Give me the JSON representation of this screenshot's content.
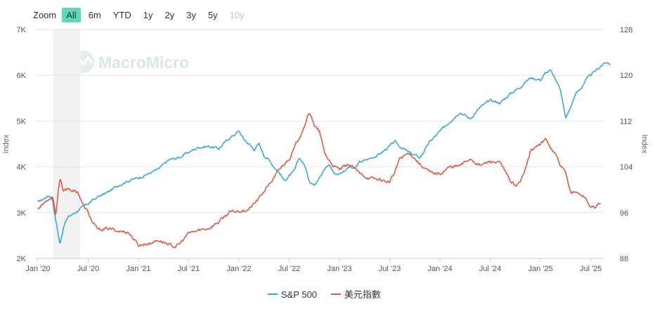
{
  "zoom": {
    "label": "Zoom",
    "buttons": [
      "All",
      "6m",
      "YTD",
      "1y",
      "2y",
      "3y",
      "5y",
      "10y"
    ],
    "active": "All",
    "disabled": [
      "10y"
    ]
  },
  "watermark": "MacroMicro",
  "colors": {
    "sp500": "#3ea8d4",
    "dxy": "#e05a44",
    "recession": "#f2f2f2",
    "grid": "#e6e6e6"
  },
  "chart_data": {
    "type": "line",
    "x_ticks": [
      "Jan '20",
      "Jul '20",
      "Jan '21",
      "Jul '21",
      "Jan '22",
      "Jul '22",
      "Jan '23",
      "Jul '23",
      "Jan '24",
      "Jul '24",
      "Jan '25",
      "Jul '25"
    ],
    "y_left": {
      "title": "Index",
      "ticks": [
        "2K",
        "3K",
        "4K",
        "5K",
        "6K",
        "7K"
      ],
      "range": [
        2000,
        7000
      ]
    },
    "y_right": {
      "title": "Index",
      "ticks": [
        "88",
        "96",
        "104",
        "112",
        "120",
        "128"
      ],
      "range": [
        88,
        128
      ]
    },
    "shaded_band": {
      "from": 2020.15,
      "to": 2020.42
    },
    "legend_position": "bottom-center",
    "grid": true,
    "series": [
      {
        "name": "S&P 500",
        "axis": "left",
        "x": [
          2020.0,
          2020.05,
          2020.1,
          2020.14,
          2020.18,
          2020.22,
          2020.26,
          2020.3,
          2020.4,
          2020.5,
          2020.6,
          2020.7,
          2020.8,
          2020.9,
          2021.0,
          2021.1,
          2021.2,
          2021.3,
          2021.4,
          2021.5,
          2021.6,
          2021.7,
          2021.8,
          2021.9,
          2022.0,
          2022.05,
          2022.1,
          2022.15,
          2022.2,
          2022.25,
          2022.3,
          2022.35,
          2022.4,
          2022.45,
          2022.5,
          2022.55,
          2022.6,
          2022.65,
          2022.7,
          2022.75,
          2022.8,
          2022.85,
          2022.9,
          2022.95,
          2023.0,
          2023.1,
          2023.15,
          2023.2,
          2023.3,
          2023.4,
          2023.5,
          2023.55,
          2023.6,
          2023.7,
          2023.8,
          2023.9,
          2024.0,
          2024.1,
          2024.2,
          2024.3,
          2024.4,
          2024.5,
          2024.6,
          2024.7,
          2024.8,
          2024.9,
          2025.0,
          2025.05,
          2025.1,
          2025.15,
          2025.2,
          2025.25,
          2025.3,
          2025.35,
          2025.4,
          2025.45,
          2025.5,
          2025.55,
          2025.6,
          2025.65,
          2025.7
        ],
        "y": [
          3230,
          3290,
          3370,
          3350,
          2800,
          2300,
          2750,
          2900,
          3050,
          3200,
          3350,
          3450,
          3600,
          3700,
          3760,
          3850,
          3950,
          4150,
          4200,
          4320,
          4430,
          4450,
          4400,
          4620,
          4780,
          4600,
          4500,
          4380,
          4500,
          4250,
          4150,
          4000,
          3880,
          3700,
          3800,
          3900,
          4200,
          4050,
          3700,
          3600,
          3800,
          3950,
          4050,
          3850,
          3850,
          4000,
          3950,
          4100,
          4180,
          4280,
          4450,
          4550,
          4450,
          4300,
          4200,
          4550,
          4770,
          5000,
          5200,
          5050,
          5300,
          5450,
          5400,
          5600,
          5750,
          5950,
          5900,
          6050,
          6100,
          5900,
          5700,
          5050,
          5300,
          5600,
          5700,
          5900,
          6000,
          6100,
          6200,
          6280,
          6250
        ]
      },
      {
        "name": "美元指數",
        "axis": "right",
        "x": [
          2020.0,
          2020.05,
          2020.1,
          2020.15,
          2020.18,
          2020.2,
          2020.22,
          2020.25,
          2020.3,
          2020.35,
          2020.4,
          2020.45,
          2020.5,
          2020.55,
          2020.6,
          2020.7,
          2020.8,
          2020.9,
          2021.0,
          2021.1,
          2021.2,
          2021.3,
          2021.35,
          2021.4,
          2021.5,
          2021.6,
          2021.7,
          2021.8,
          2021.9,
          2022.0,
          2022.1,
          2022.2,
          2022.3,
          2022.35,
          2022.4,
          2022.45,
          2022.5,
          2022.55,
          2022.6,
          2022.65,
          2022.7,
          2022.72,
          2022.75,
          2022.8,
          2022.85,
          2022.9,
          2022.95,
          2023.0,
          2023.1,
          2023.2,
          2023.3,
          2023.4,
          2023.5,
          2023.55,
          2023.6,
          2023.7,
          2023.8,
          2023.9,
          2024.0,
          2024.1,
          2024.2,
          2024.3,
          2024.4,
          2024.5,
          2024.6,
          2024.7,
          2024.75,
          2024.8,
          2024.85,
          2024.9,
          2025.0,
          2025.05,
          2025.1,
          2025.15,
          2025.2,
          2025.25,
          2025.3,
          2025.35,
          2025.4,
          2025.45,
          2025.5,
          2025.55,
          2025.6
        ],
        "y": [
          96.8,
          97.5,
          98.4,
          98.8,
          95.5,
          99.8,
          102.2,
          99.5,
          100.3,
          99.8,
          99.6,
          97.2,
          96.0,
          94.0,
          93.0,
          93.2,
          92.8,
          92.6,
          90.3,
          90.6,
          91.2,
          90.5,
          90.1,
          90.3,
          92.4,
          92.9,
          93.3,
          94.4,
          96.0,
          96.3,
          96.6,
          98.5,
          101.0,
          102.0,
          103.5,
          104.5,
          105.5,
          107.2,
          109.2,
          111.2,
          113.5,
          113.0,
          111.0,
          110.2,
          106.5,
          105.0,
          104.0,
          103.5,
          104.5,
          102.8,
          102.0,
          101.8,
          101.3,
          103.0,
          105.5,
          106.5,
          104.5,
          103.0,
          102.8,
          104.0,
          104.2,
          105.5,
          104.2,
          105.0,
          104.6,
          101.5,
          100.8,
          101.2,
          104.0,
          106.8,
          108.0,
          108.8,
          107.3,
          106.2,
          104.0,
          102.9,
          99.6,
          99.6,
          99.2,
          98.5,
          96.9,
          97.0,
          97.9
        ]
      }
    ]
  }
}
